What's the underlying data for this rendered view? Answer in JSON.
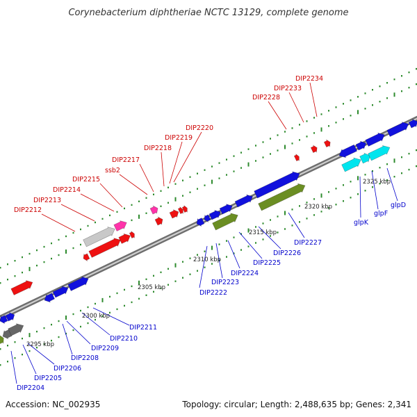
{
  "title": "Corynebacterium diphtheriae NCTC 13129, complete genome",
  "footer": {
    "accession": "Accession: NC_002935",
    "summary": "Topology: circular; Length: 2,488,635 bp; Genes: 2,341"
  },
  "scale_labels": [
    "2295 kbp",
    "2300 kbp",
    "2305 kbp",
    "2310 kbp",
    "2315 kbp",
    "2320 kbp",
    "2325 kbp"
  ],
  "colors": {
    "backbone": "#7a7a7a",
    "tick": "#2e8b2e",
    "red_gene": "#ee1111",
    "blue_gene": "#1111dd",
    "olive_gene": "#6b8e23",
    "cyan_gene": "#00e5ee",
    "pink_gene": "#ff33aa",
    "grey_gene": "#c8c8c8",
    "dark_grey_gene": "#666666",
    "red_label": "#cc0000",
    "blue_label": "#0000cc"
  },
  "top_labels": [
    "DIP2212",
    "DIP2213",
    "DIP2214",
    "DIP2215",
    "ssb2",
    "DIP2217",
    "DIP2218",
    "DIP2219",
    "DIP2220",
    "DIP2228",
    "DIP2233",
    "DIP2234"
  ],
  "bottom_labels": [
    "DIP2204",
    "DIP2205",
    "DIP2206",
    "DIP2208",
    "DIP2209",
    "DIP2210",
    "DIP2211",
    "DIP2222",
    "DIP2223",
    "DIP2224",
    "DIP2225",
    "DIP2226",
    "DIP2227",
    "glpK",
    "glpF",
    "glpD"
  ]
}
